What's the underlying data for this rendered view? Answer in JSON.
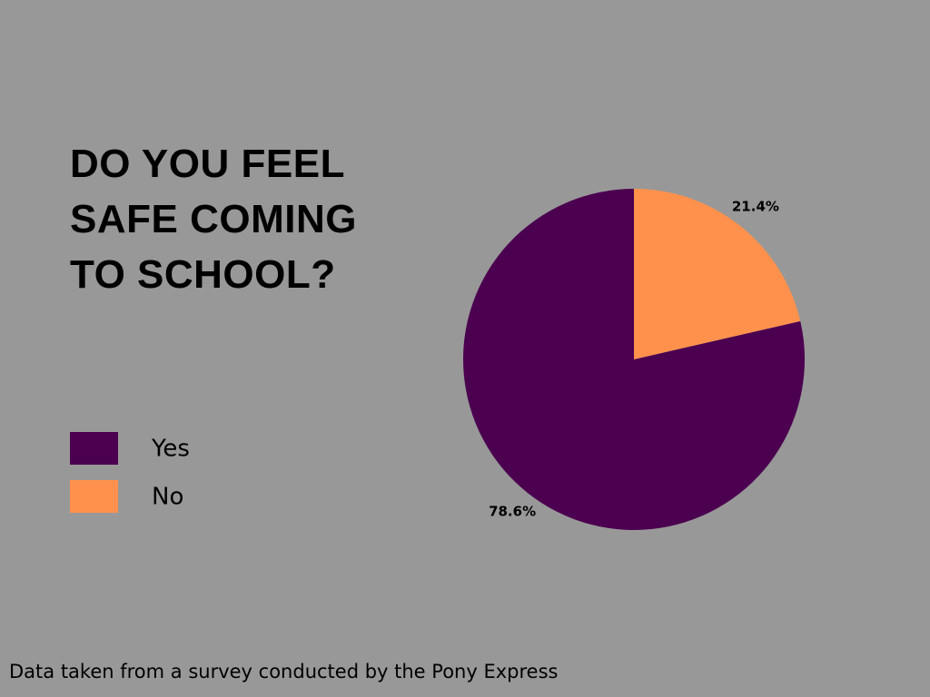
{
  "chart_data": {
    "type": "pie",
    "title": "DO YOU FEEL SAFE COMING TO SCHOOL?",
    "categories": [
      "Yes",
      "No"
    ],
    "values": [
      78.6,
      21.4
    ],
    "value_labels": [
      "78.6%",
      "21.4%"
    ],
    "colors": [
      "#4b0050",
      "#ff914d"
    ],
    "note": "Data taken from a survey conducted by the Pony Express"
  }
}
